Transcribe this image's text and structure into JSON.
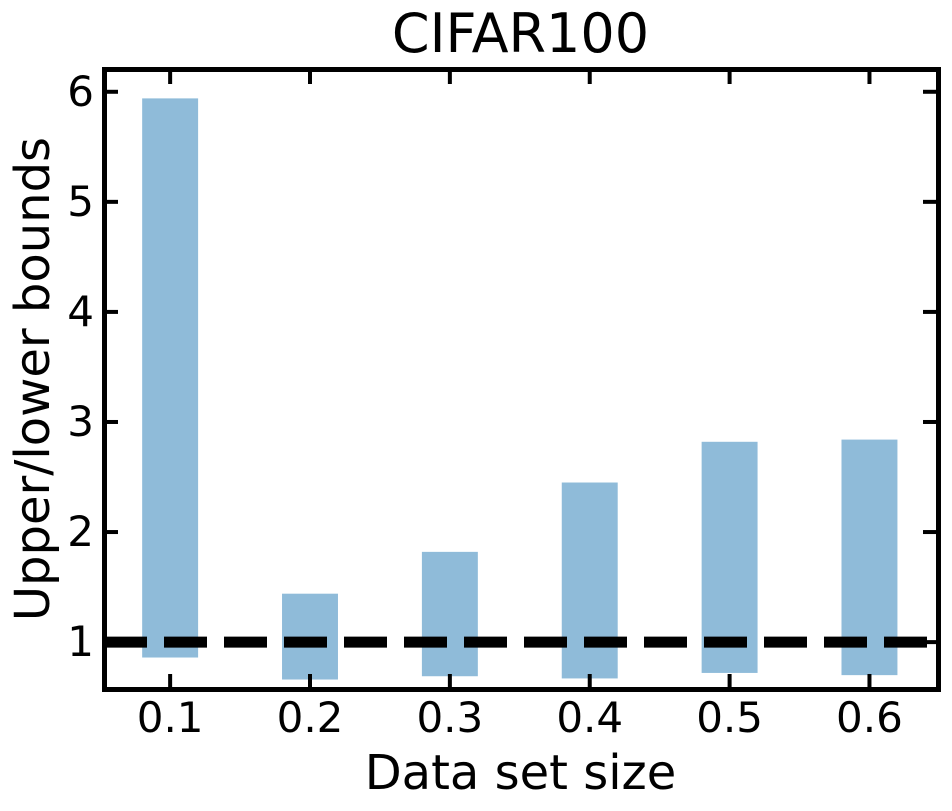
{
  "figure": {
    "background": "#ffffff"
  },
  "chart_data": {
    "type": "bar",
    "subtype": "floating-range-bars",
    "title": "CIFAR100",
    "xlabel": "Data set size",
    "ylabel": "Upper/lower bounds",
    "categories": [
      "0.1",
      "0.2",
      "0.3",
      "0.4",
      "0.5",
      "0.6"
    ],
    "bars": [
      {
        "x": 0.1,
        "lower": 0.86,
        "upper": 5.94
      },
      {
        "x": 0.2,
        "lower": 0.66,
        "upper": 1.44
      },
      {
        "x": 0.3,
        "lower": 0.69,
        "upper": 1.82
      },
      {
        "x": 0.4,
        "lower": 0.67,
        "upper": 2.45
      },
      {
        "x": 0.5,
        "lower": 0.72,
        "upper": 2.82
      },
      {
        "x": 0.6,
        "lower": 0.7,
        "upper": 2.84
      }
    ],
    "bar_width": 0.04,
    "bar_color": "#8fbbd9",
    "reference_line": {
      "y": 1.0,
      "style": "dashed",
      "color": "#000000"
    },
    "yticks": [
      1,
      2,
      3,
      4,
      5,
      6
    ],
    "ytick_labels": [
      "1",
      "2",
      "3",
      "4",
      "5",
      "6"
    ],
    "xlim": [
      0.052,
      0.649
    ],
    "ylim": [
      0.574,
      6.207
    ],
    "grid": false,
    "legend_position": "none",
    "axis_color": "#000000",
    "text_color": "#000000",
    "tick_direction": "in",
    "ticks_on_all_sides": true
  }
}
